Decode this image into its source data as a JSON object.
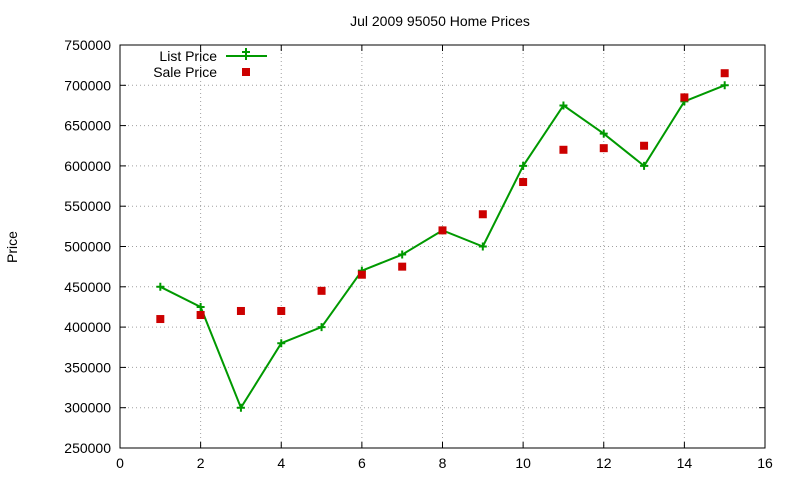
{
  "chart_data": {
    "type": "line",
    "title": "Jul 2009 95050 Home Prices",
    "xlabel": "",
    "ylabel": "Price",
    "xlim": [
      0,
      16
    ],
    "ylim": [
      250000,
      750000
    ],
    "xticks": [
      0,
      2,
      4,
      6,
      8,
      10,
      12,
      14,
      16
    ],
    "yticks": [
      250000,
      300000,
      350000,
      400000,
      450000,
      500000,
      550000,
      600000,
      650000,
      700000,
      750000
    ],
    "grid": true,
    "legend_position": "top-left",
    "series": [
      {
        "name": "List Price",
        "style": "line-with-plus-markers",
        "color": "#009900",
        "x": [
          1,
          2,
          3,
          4,
          5,
          6,
          7,
          8,
          9,
          10,
          11,
          12,
          13,
          14,
          15
        ],
        "y": [
          450000,
          425000,
          300000,
          380000,
          400000,
          470000,
          490000,
          520000,
          500000,
          600000,
          675000,
          640000,
          600000,
          680000,
          700000
        ]
      },
      {
        "name": "Sale Price",
        "style": "square-markers",
        "color": "#cc0000",
        "x": [
          1,
          2,
          3,
          4,
          5,
          6,
          7,
          8,
          9,
          10,
          11,
          12,
          13,
          14,
          15
        ],
        "y": [
          410000,
          415000,
          420000,
          420000,
          445000,
          465000,
          475000,
          520000,
          540000,
          580000,
          620000,
          622000,
          625000,
          685000,
          715000
        ]
      }
    ]
  }
}
